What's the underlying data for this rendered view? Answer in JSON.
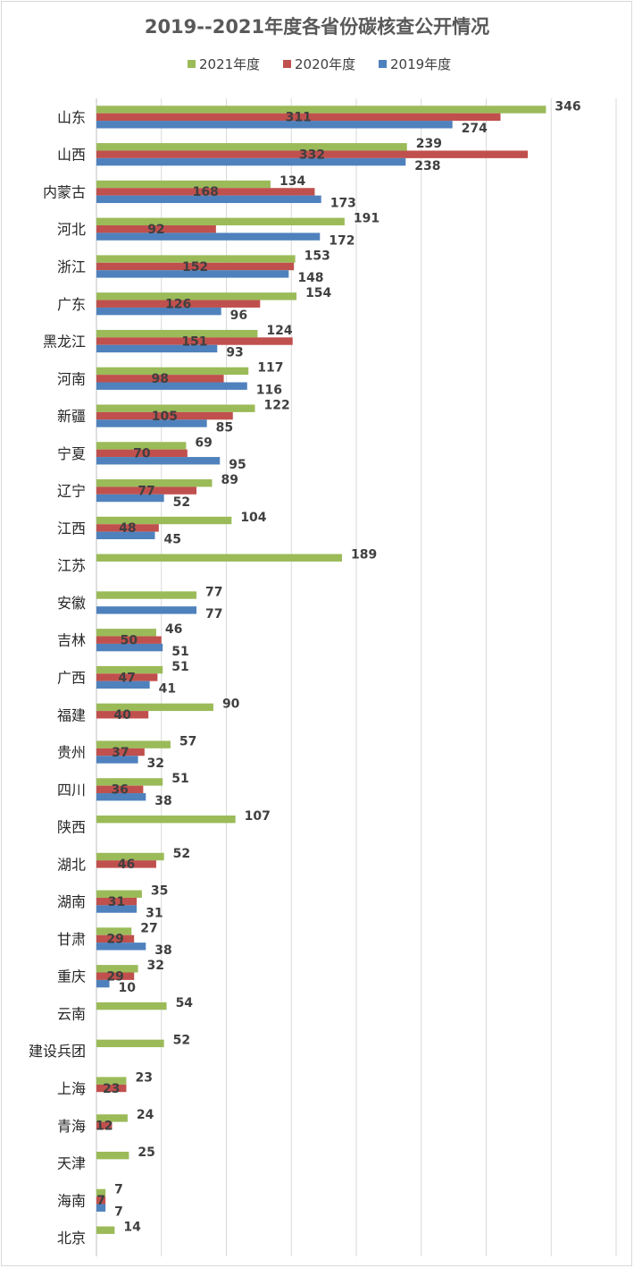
{
  "chart_data": {
    "type": "bar",
    "orientation": "horizontal",
    "title": "2019--2021年度各省份碳核查公开情况",
    "xlabel": "",
    "ylabel": "",
    "xlim": [
      0,
      400
    ],
    "grid": "vertical",
    "legend_placement": "top",
    "categories": [
      "山东",
      "山西",
      "内蒙古",
      "河北",
      "浙江",
      "广东",
      "黑龙江",
      "河南",
      "新疆",
      "宁夏",
      "辽宁",
      "江西",
      "江苏",
      "安徽",
      "吉林",
      "广西",
      "福建",
      "贵州",
      "四川",
      "陕西",
      "湖北",
      "湖南",
      "甘肃",
      "重庆",
      "云南",
      "建设兵团",
      "上海",
      "青海",
      "天津",
      "海南",
      "北京"
    ],
    "series": [
      {
        "name": "2021年度",
        "color": "#9bbb59",
        "values": [
          346,
          239,
          134,
          191,
          153,
          154,
          124,
          117,
          122,
          69,
          89,
          104,
          189,
          77,
          46,
          51,
          90,
          57,
          51,
          107,
          52,
          35,
          27,
          32,
          54,
          52,
          23,
          24,
          25,
          7,
          14
        ]
      },
      {
        "name": "2020年度",
        "color": "#c0504d",
        "values": [
          311,
          332,
          168,
          92,
          152,
          126,
          151,
          98,
          105,
          70,
          77,
          48,
          null,
          null,
          50,
          47,
          40,
          37,
          36,
          null,
          46,
          31,
          29,
          29,
          null,
          null,
          23,
          12,
          null,
          7,
          null
        ]
      },
      {
        "name": "2019年度",
        "color": "#4f81bd",
        "values": [
          274,
          238,
          173,
          172,
          148,
          96,
          93,
          116,
          85,
          95,
          52,
          45,
          null,
          77,
          51,
          41,
          null,
          32,
          38,
          null,
          null,
          31,
          38,
          10,
          null,
          null,
          null,
          null,
          null,
          7,
          null
        ]
      }
    ]
  }
}
